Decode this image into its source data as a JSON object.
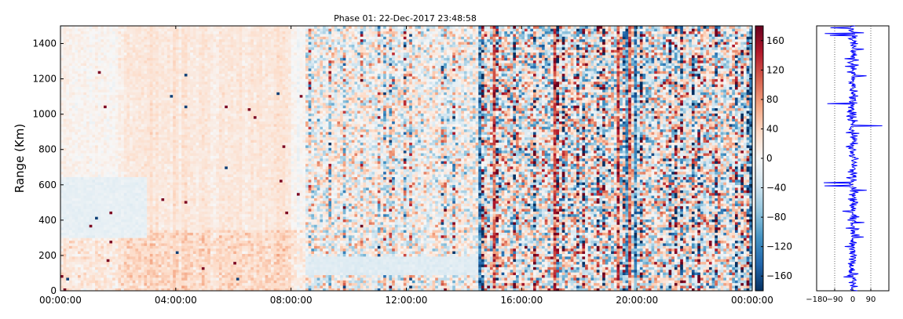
{
  "chart_data": [
    {
      "type": "heatmap",
      "title": "Phase 01: 22-Dec-2017 23:48:58",
      "ylabel": "Range (Km)",
      "xlabel": "",
      "x_tick_labels": [
        "00:00:00",
        "04:00:00",
        "08:00:00",
        "12:00:00",
        "16:00:00",
        "20:00:00",
        "00:00:00"
      ],
      "x_range_hours": [
        0,
        24
      ],
      "y_ticks": [
        0,
        200,
        400,
        600,
        800,
        1000,
        1200,
        1400
      ],
      "ylim": [
        0,
        1500
      ],
      "colorbar": {
        "colormap": "RdBu_r",
        "range": [
          -180,
          180
        ],
        "ticks": [
          -160,
          -120,
          -80,
          -40,
          0,
          40,
          80,
          120,
          160
        ],
        "tick_labels": [
          "−160",
          "−120",
          "−80",
          "−40",
          "0",
          "40",
          "80",
          "120",
          "160"
        ]
      },
      "colors": {
        "low": "#053061",
        "mid": "#f7f7f7",
        "high": "#67001f"
      }
    },
    {
      "type": "line",
      "title": "",
      "x_ticks": [
        -180,
        -90,
        0,
        90
      ],
      "x_tick_labels": [
        "−180",
        "−90",
        "0",
        "90"
      ],
      "xlim": [
        -180,
        180
      ],
      "ylim": [
        0,
        1500
      ],
      "line_color": "#0000ff",
      "grid": "dotted vertical at -90, 0, 90"
    }
  ]
}
